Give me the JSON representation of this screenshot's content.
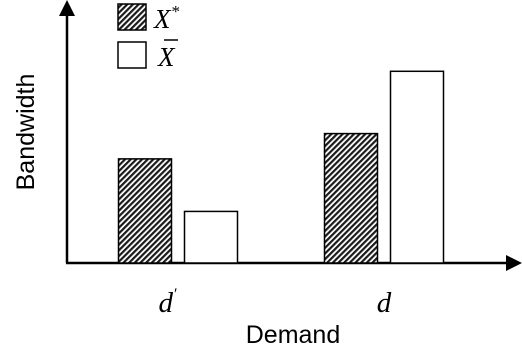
{
  "chart_data": {
    "type": "bar",
    "categories": [
      "d",
      "d"
    ],
    "category_primes": [
      "′",
      ""
    ],
    "series": [
      {
        "name": "X",
        "name_sup": "*",
        "pattern": "hatched",
        "values": [
          107,
          133
        ]
      },
      {
        "name": "X",
        "name_bar": true,
        "pattern": "plain",
        "values": [
          53,
          197
        ]
      }
    ],
    "xlabel": "Demand",
    "ylabel": "Bandwidth",
    "ylim": [
      0,
      260
    ],
    "grid": false,
    "legend": "top-left",
    "colors": {
      "axis": "#000000",
      "bar_stroke": "#000000",
      "hatch_dark": "#1a1a1a",
      "hatch_light": "#ffffff",
      "plain_fill": "#ffffff"
    }
  }
}
